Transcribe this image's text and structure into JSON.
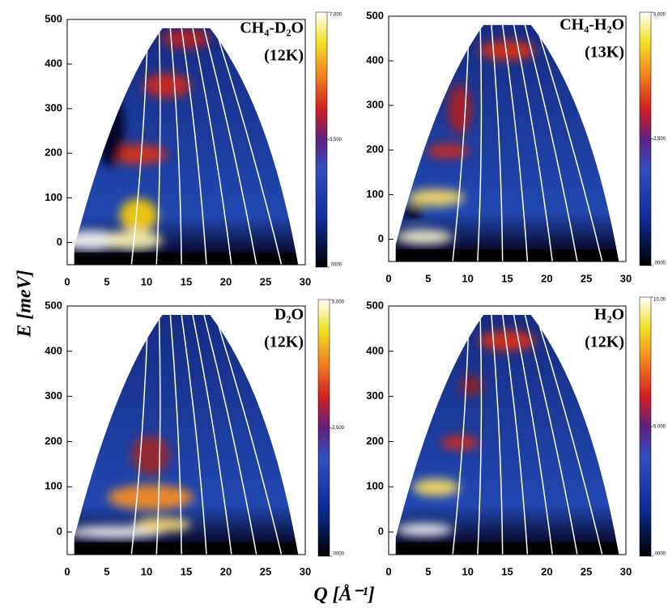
{
  "figure": {
    "y_label": "E [meV]",
    "x_label": "Q [Å⁻¹]"
  },
  "chart_data": [
    {
      "type": "heatmap",
      "title_lines": [
        "CH₄-D₂O",
        "(12K)"
      ],
      "xlim": [
        0,
        30
      ],
      "xticks": [
        0,
        5,
        10,
        15,
        20,
        25,
        30
      ],
      "ylim": [
        -50,
        500
      ],
      "yticks": [
        0,
        100,
        200,
        300,
        400,
        500
      ],
      "clim": [
        0,
        7000
      ],
      "cticks": [
        {
          "value": 7000,
          "label": "7,000"
        },
        {
          "value": 3500,
          "label": "3,500"
        },
        {
          "value": 0,
          "label": ".0000"
        }
      ]
    },
    {
      "type": "heatmap",
      "title_lines": [
        "CH₄-H₂O",
        "(13K)"
      ],
      "xlim": [
        0,
        30
      ],
      "xticks": [
        0,
        5,
        10,
        15,
        20,
        25,
        30
      ],
      "ylim": [
        -50,
        500
      ],
      "yticks": [
        0,
        100,
        200,
        300,
        400,
        500
      ],
      "clim": [
        0,
        5000
      ],
      "cticks": [
        {
          "value": 5000,
          "label": "5,000"
        },
        {
          "value": 2500,
          "label": "2,500"
        },
        {
          "value": 0,
          "label": ".0000"
        }
      ]
    },
    {
      "type": "heatmap",
      "title_lines": [
        "D₂O",
        "(12K)"
      ],
      "xlim": [
        0,
        30
      ],
      "xticks": [
        0,
        5,
        10,
        15,
        20,
        25,
        30
      ],
      "ylim": [
        -50,
        500
      ],
      "yticks": [
        0,
        100,
        200,
        300,
        400,
        500
      ],
      "clim": [
        0,
        5000
      ],
      "cticks": [
        {
          "value": 5000,
          "label": "5,000"
        },
        {
          "value": 2500,
          "label": "2,500"
        },
        {
          "value": 0,
          "label": ".0000"
        }
      ]
    },
    {
      "type": "heatmap",
      "title_lines": [
        "H₂O",
        "(12K)"
      ],
      "xlim": [
        0,
        30
      ],
      "xticks": [
        0,
        5,
        10,
        15,
        20,
        25,
        30
      ],
      "ylim": [
        -50,
        500
      ],
      "yticks": [
        0,
        100,
        200,
        300,
        400,
        500
      ],
      "clim": [
        0,
        10
      ],
      "cticks": [
        {
          "value": 10,
          "label": "10.00"
        },
        {
          "value": 5,
          "label": "5.000"
        },
        {
          "value": 0,
          "label": ".0000"
        }
      ]
    }
  ]
}
